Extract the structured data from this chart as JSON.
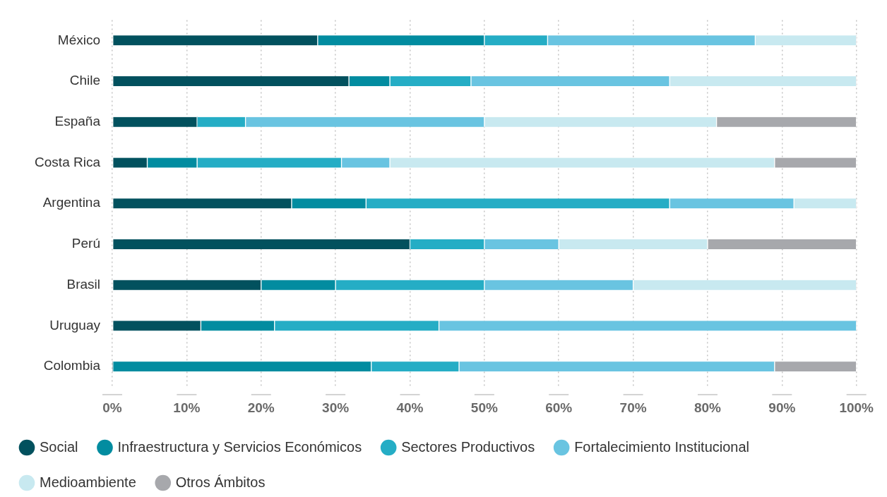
{
  "chart_data": {
    "type": "bar",
    "orientation": "horizontal",
    "stacked": true,
    "categories": [
      "México",
      "Chile",
      "España",
      "Costa Rica",
      "Argentina",
      "Perú",
      "Brasil",
      "Uruguay",
      "Colombia"
    ],
    "series": [
      {
        "name": "Social",
        "color": "#02515e",
        "values": [
          27.6,
          31.8,
          11.4,
          4.7,
          24.1,
          40,
          20,
          11.9,
          0
        ]
      },
      {
        "name": "Infraestructura y Servicios Económicos",
        "color": "#028ca0",
        "values": [
          22.4,
          5.5,
          0,
          6.7,
          10,
          0,
          10,
          9.9,
          34.8
        ]
      },
      {
        "name": "Sectores Productivos",
        "color": "#25adc5",
        "values": [
          8.5,
          10.9,
          6.5,
          19.4,
          40.8,
          10,
          20,
          22.1,
          11.8
        ]
      },
      {
        "name": "Fortalecimiento Institucional",
        "color": "#69c4e1",
        "values": [
          27.9,
          26.7,
          32.1,
          6.5,
          16.7,
          10,
          20,
          56.1,
          42.4
        ]
      },
      {
        "name": "Medioambiente",
        "color": "#c8e9f0",
        "values": [
          13.6,
          25.1,
          31.2,
          51.7,
          8.4,
          20,
          30,
          0,
          0
        ]
      },
      {
        "name": "Otros Ámbitos",
        "color": "#a7a8ac",
        "values": [
          0,
          0,
          18.8,
          11,
          0,
          20,
          0,
          0,
          11
        ]
      }
    ],
    "xlim": [
      0,
      100
    ],
    "xticks": [
      {
        "value": 0,
        "label": "0%"
      },
      {
        "value": 10,
        "label": "10%"
      },
      {
        "value": 20,
        "label": "20%"
      },
      {
        "value": 30,
        "label": "30%"
      },
      {
        "value": 40,
        "label": "40%"
      },
      {
        "value": 50,
        "label": "50%"
      },
      {
        "value": 60,
        "label": "60%"
      },
      {
        "value": 70,
        "label": "70%"
      },
      {
        "value": 80,
        "label": "80%"
      },
      {
        "value": 90,
        "label": "90%"
      },
      {
        "value": 100,
        "label": "100%"
      }
    ],
    "grid": "x",
    "legend": "bottom left"
  }
}
